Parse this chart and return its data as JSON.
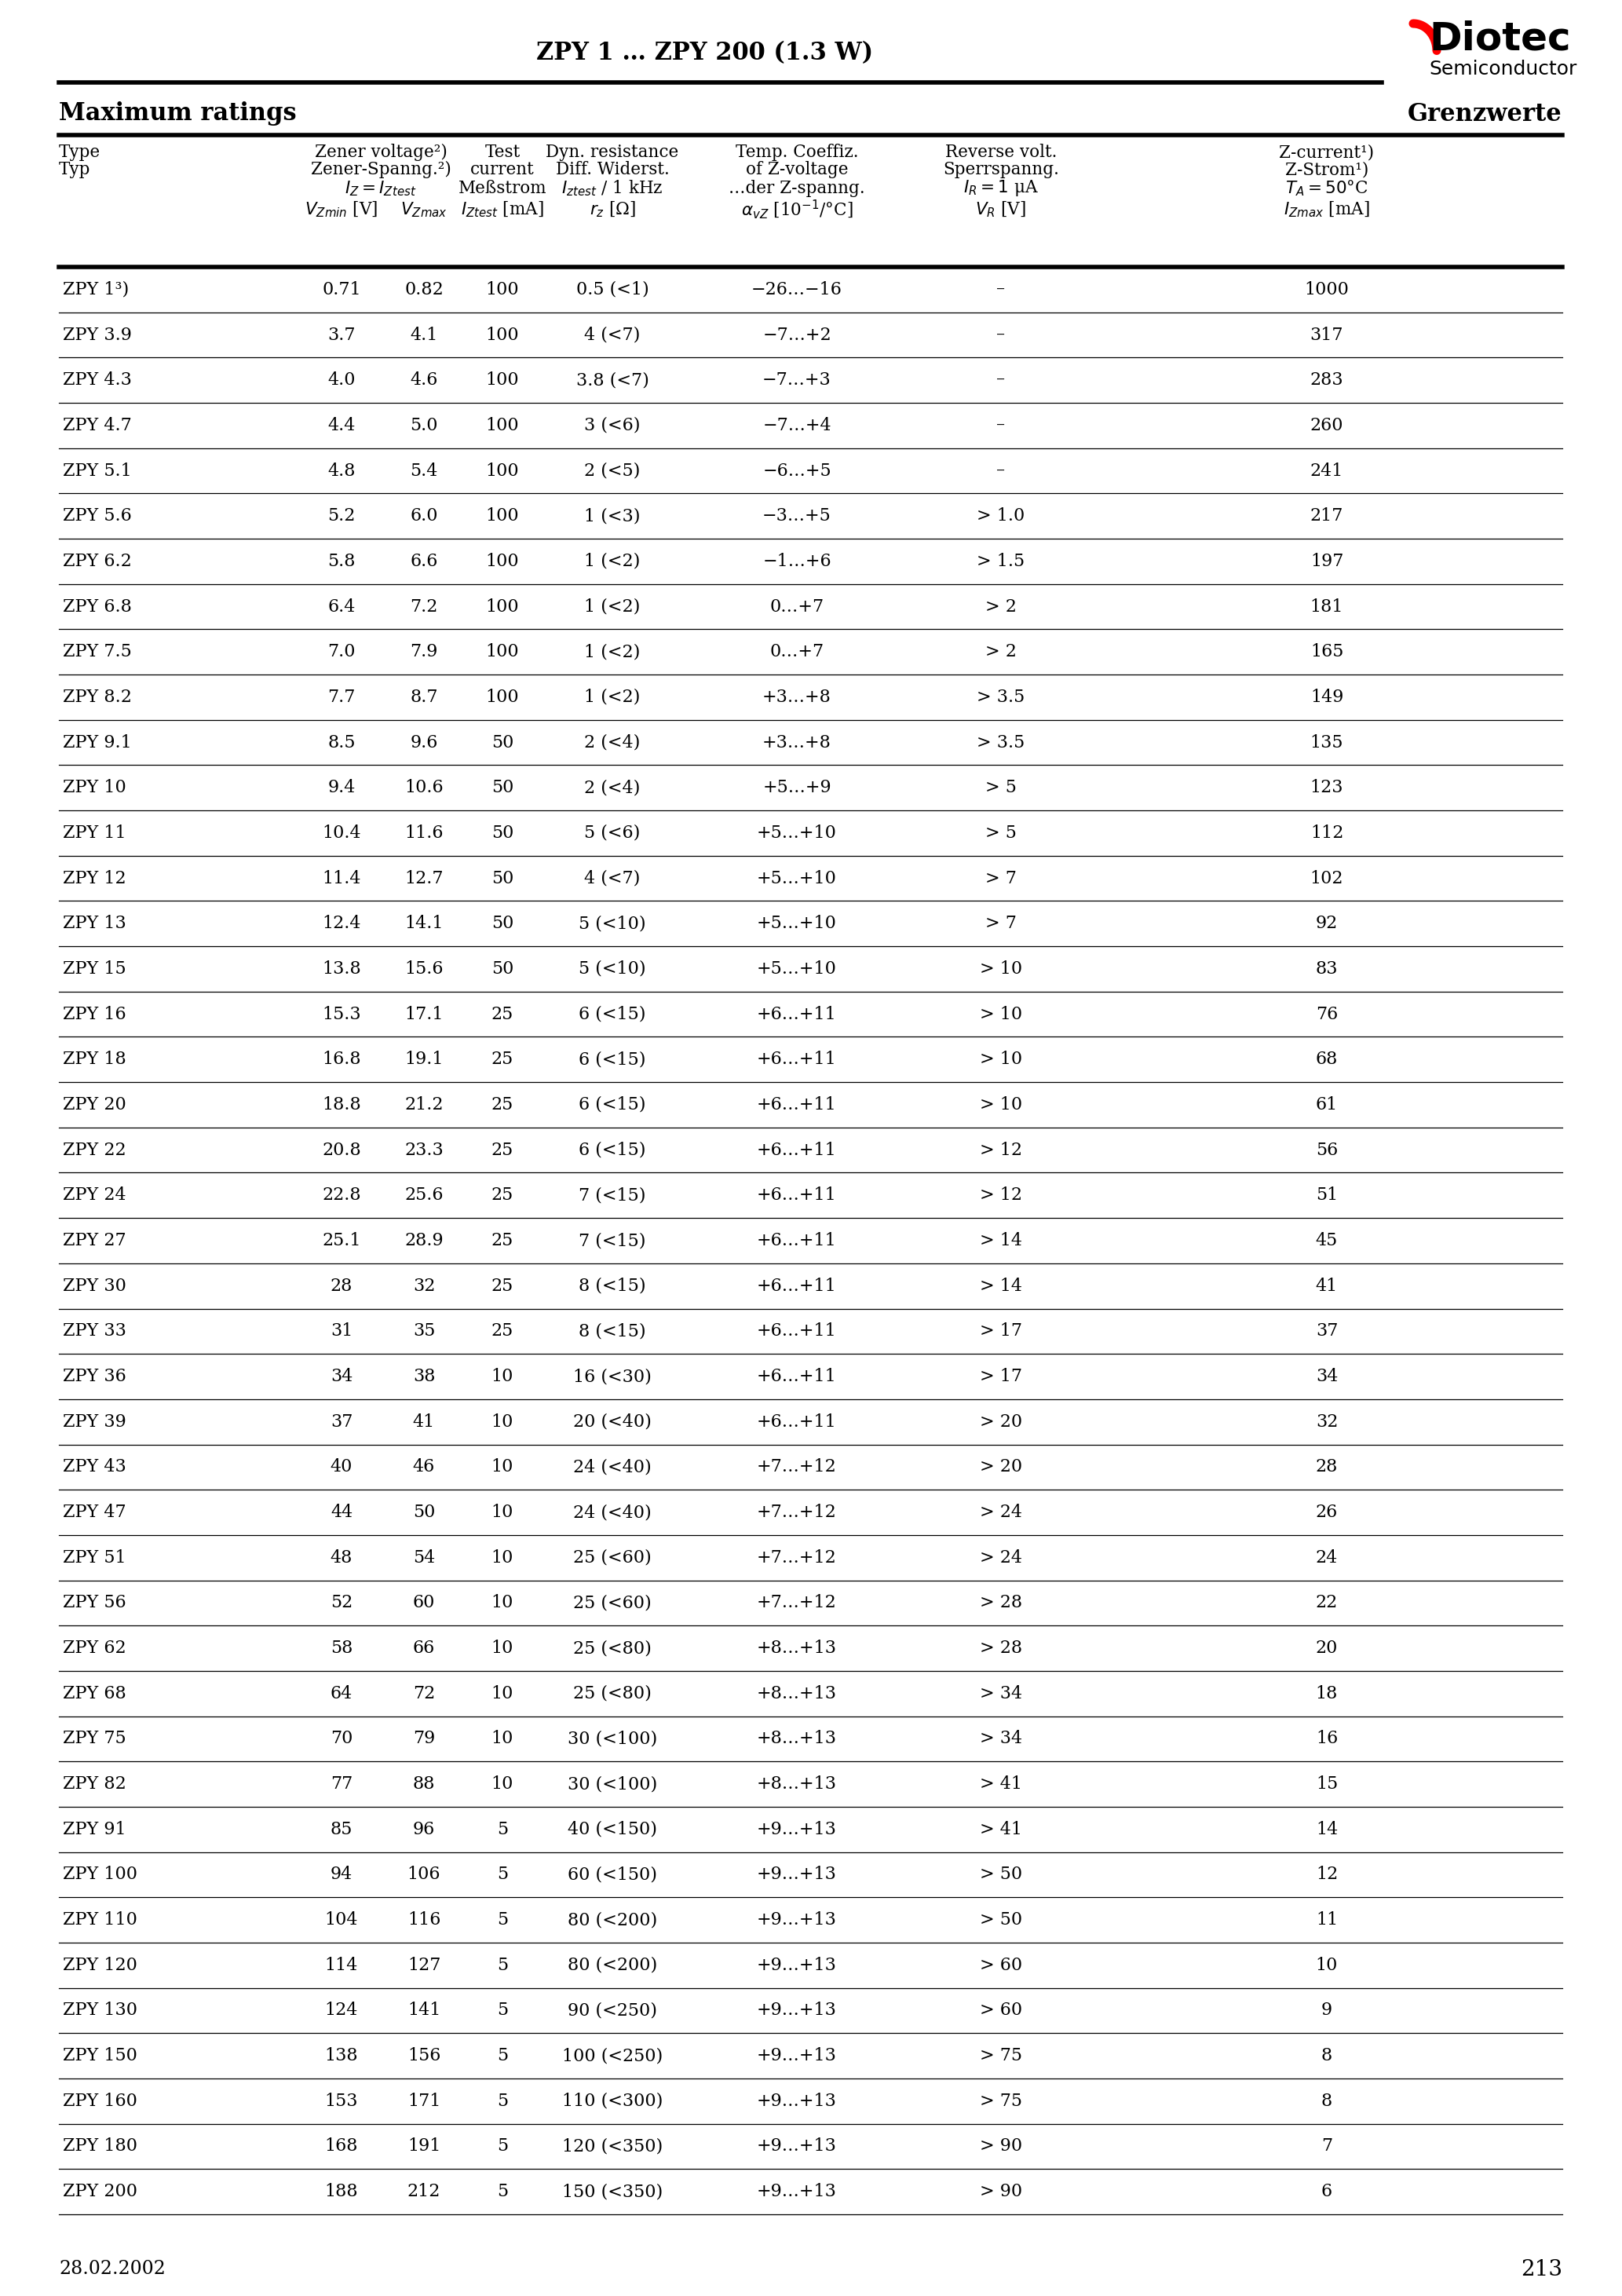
{
  "title": "ZPY 1 … ZPY 200 (1.3 W)",
  "header_left": "Maximum ratings",
  "header_right": "Grenzwerte",
  "date": "28.02.2002",
  "page": "213",
  "rows": [
    [
      "ZPY 1³)",
      "0.71",
      "0.82",
      "100",
      "0.5 (<1)",
      "−26…−16",
      "–",
      "1000"
    ],
    [
      "ZPY 3.9",
      "3.7",
      "4.1",
      "100",
      "4 (<7)",
      "−7…+2",
      "–",
      "317"
    ],
    [
      "ZPY 4.3",
      "4.0",
      "4.6",
      "100",
      "3.8 (<7)",
      "−7…+3",
      "–",
      "283"
    ],
    [
      "ZPY 4.7",
      "4.4",
      "5.0",
      "100",
      "3 (<6)",
      "−7…+4",
      "–",
      "260"
    ],
    [
      "ZPY 5.1",
      "4.8",
      "5.4",
      "100",
      "2 (<5)",
      "−6…+5",
      "–",
      "241"
    ],
    [
      "ZPY 5.6",
      "5.2",
      "6.0",
      "100",
      "1 (<3)",
      "−3…+5",
      "> 1.0",
      "217"
    ],
    [
      "ZPY 6.2",
      "5.8",
      "6.6",
      "100",
      "1 (<2)",
      "−1…+6",
      "> 1.5",
      "197"
    ],
    [
      "ZPY 6.8",
      "6.4",
      "7.2",
      "100",
      "1 (<2)",
      "0…+7",
      "> 2",
      "181"
    ],
    [
      "ZPY 7.5",
      "7.0",
      "7.9",
      "100",
      "1 (<2)",
      "0…+7",
      "> 2",
      "165"
    ],
    [
      "ZPY 8.2",
      "7.7",
      "8.7",
      "100",
      "1 (<2)",
      "+3…+8",
      "> 3.5",
      "149"
    ],
    [
      "ZPY 9.1",
      "8.5",
      "9.6",
      "50",
      "2 (<4)",
      "+3…+8",
      "> 3.5",
      "135"
    ],
    [
      "ZPY 10",
      "9.4",
      "10.6",
      "50",
      "2 (<4)",
      "+5…+9",
      "> 5",
      "123"
    ],
    [
      "ZPY 11",
      "10.4",
      "11.6",
      "50",
      "5 (<6)",
      "+5…+10",
      "> 5",
      "112"
    ],
    [
      "ZPY 12",
      "11.4",
      "12.7",
      "50",
      "4 (<7)",
      "+5…+10",
      "> 7",
      "102"
    ],
    [
      "ZPY 13",
      "12.4",
      "14.1",
      "50",
      "5 (<10)",
      "+5…+10",
      "> 7",
      "92"
    ],
    [
      "ZPY 15",
      "13.8",
      "15.6",
      "50",
      "5 (<10)",
      "+5…+10",
      "> 10",
      "83"
    ],
    [
      "ZPY 16",
      "15.3",
      "17.1",
      "25",
      "6 (<15)",
      "+6…+11",
      "> 10",
      "76"
    ],
    [
      "ZPY 18",
      "16.8",
      "19.1",
      "25",
      "6 (<15)",
      "+6…+11",
      "> 10",
      "68"
    ],
    [
      "ZPY 20",
      "18.8",
      "21.2",
      "25",
      "6 (<15)",
      "+6…+11",
      "> 10",
      "61"
    ],
    [
      "ZPY 22",
      "20.8",
      "23.3",
      "25",
      "6 (<15)",
      "+6…+11",
      "> 12",
      "56"
    ],
    [
      "ZPY 24",
      "22.8",
      "25.6",
      "25",
      "7 (<15)",
      "+6…+11",
      "> 12",
      "51"
    ],
    [
      "ZPY 27",
      "25.1",
      "28.9",
      "25",
      "7 (<15)",
      "+6…+11",
      "> 14",
      "45"
    ],
    [
      "ZPY 30",
      "28",
      "32",
      "25",
      "8 (<15)",
      "+6…+11",
      "> 14",
      "41"
    ],
    [
      "ZPY 33",
      "31",
      "35",
      "25",
      "8 (<15)",
      "+6…+11",
      "> 17",
      "37"
    ],
    [
      "ZPY 36",
      "34",
      "38",
      "10",
      "16 (<30)",
      "+6…+11",
      "> 17",
      "34"
    ],
    [
      "ZPY 39",
      "37",
      "41",
      "10",
      "20 (<40)",
      "+6…+11",
      "> 20",
      "32"
    ],
    [
      "ZPY 43",
      "40",
      "46",
      "10",
      "24 (<40)",
      "+7…+12",
      "> 20",
      "28"
    ],
    [
      "ZPY 47",
      "44",
      "50",
      "10",
      "24 (<40)",
      "+7…+12",
      "> 24",
      "26"
    ],
    [
      "ZPY 51",
      "48",
      "54",
      "10",
      "25 (<60)",
      "+7…+12",
      "> 24",
      "24"
    ],
    [
      "ZPY 56",
      "52",
      "60",
      "10",
      "25 (<60)",
      "+7…+12",
      "> 28",
      "22"
    ],
    [
      "ZPY 62",
      "58",
      "66",
      "10",
      "25 (<80)",
      "+8…+13",
      "> 28",
      "20"
    ],
    [
      "ZPY 68",
      "64",
      "72",
      "10",
      "25 (<80)",
      "+8…+13",
      "> 34",
      "18"
    ],
    [
      "ZPY 75",
      "70",
      "79",
      "10",
      "30 (<100)",
      "+8…+13",
      "> 34",
      "16"
    ],
    [
      "ZPY 82",
      "77",
      "88",
      "10",
      "30 (<100)",
      "+8…+13",
      "> 41",
      "15"
    ],
    [
      "ZPY 91",
      "85",
      "96",
      "5",
      "40 (<150)",
      "+9…+13",
      "> 41",
      "14"
    ],
    [
      "ZPY 100",
      "94",
      "106",
      "5",
      "60 (<150)",
      "+9…+13",
      "> 50",
      "12"
    ],
    [
      "ZPY 110",
      "104",
      "116",
      "5",
      "80 (<200)",
      "+9…+13",
      "> 50",
      "11"
    ],
    [
      "ZPY 120",
      "114",
      "127",
      "5",
      "80 (<200)",
      "+9…+13",
      "> 60",
      "10"
    ],
    [
      "ZPY 130",
      "124",
      "141",
      "5",
      "90 (<250)",
      "+9…+13",
      "> 60",
      "9"
    ],
    [
      "ZPY 150",
      "138",
      "156",
      "5",
      "100 (<250)",
      "+9…+13",
      "> 75",
      "8"
    ],
    [
      "ZPY 160",
      "153",
      "171",
      "5",
      "110 (<300)",
      "+9…+13",
      "> 75",
      "8"
    ],
    [
      "ZPY 180",
      "168",
      "191",
      "5",
      "120 (<350)",
      "+9…+13",
      "> 90",
      "7"
    ],
    [
      "ZPY 200",
      "188",
      "212",
      "5",
      "150 (<350)",
      "+9…+13",
      "> 90",
      "6"
    ]
  ]
}
